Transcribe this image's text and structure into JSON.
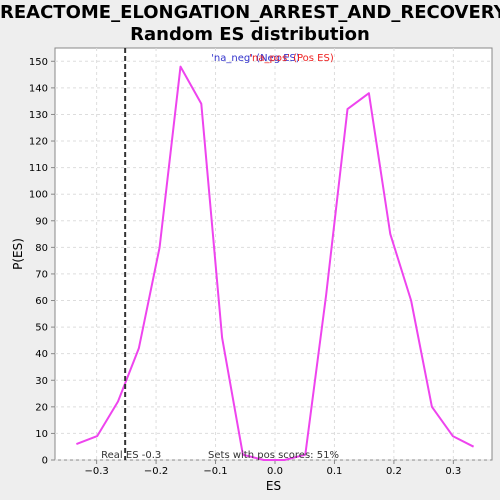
{
  "title_line1": "REACTOME_ELONGATION_ARREST_AND_RECOVERY:",
  "title_line2": "Random ES distribution",
  "chart_data": {
    "type": "line",
    "xlabel": "ES",
    "ylabel": "P(ES)",
    "xlim": [
      -0.37,
      0.365
    ],
    "ylim": [
      0,
      155
    ],
    "xticks": [
      -0.3,
      -0.2,
      -0.1,
      0.0,
      0.1,
      0.2,
      0.3
    ],
    "xtick_labels": [
      "−0.3",
      "−0.2",
      "−0.1",
      "0.0",
      "0.1",
      "0.2",
      "0.3"
    ],
    "yticks": [
      0,
      10,
      20,
      30,
      40,
      50,
      60,
      70,
      80,
      90,
      100,
      110,
      120,
      130,
      140,
      150
    ],
    "grid": true,
    "legend": {
      "position": "top-center",
      "neg_label": "'na_neg' (Neg ES)",
      "pos_label": "'na_pos' (Pos ES)",
      "neg_color": "#3333cc",
      "pos_color": "#ee2222"
    },
    "series": [
      {
        "color": "#ee44ee",
        "x": [
          -0.334,
          -0.299,
          -0.264,
          -0.229,
          -0.194,
          -0.159,
          -0.124,
          -0.089,
          -0.054,
          -0.019,
          0.016,
          0.051,
          0.086,
          0.122,
          0.158,
          0.194,
          0.229,
          0.264,
          0.299,
          0.334
        ],
        "y": [
          6,
          9,
          22,
          42,
          80,
          148,
          134,
          46,
          2,
          0,
          0,
          2,
          62,
          132,
          138,
          85,
          60,
          20,
          9,
          5
        ]
      }
    ],
    "real_es": {
      "x": -0.252,
      "label": "Real ES -0.3"
    },
    "annotation": "Sets with pos scores: 51%"
  },
  "colors": {
    "background": "#eeeeee",
    "plot_bg": "#ffffff",
    "grid": "#dddddd",
    "axis": "#888888"
  }
}
